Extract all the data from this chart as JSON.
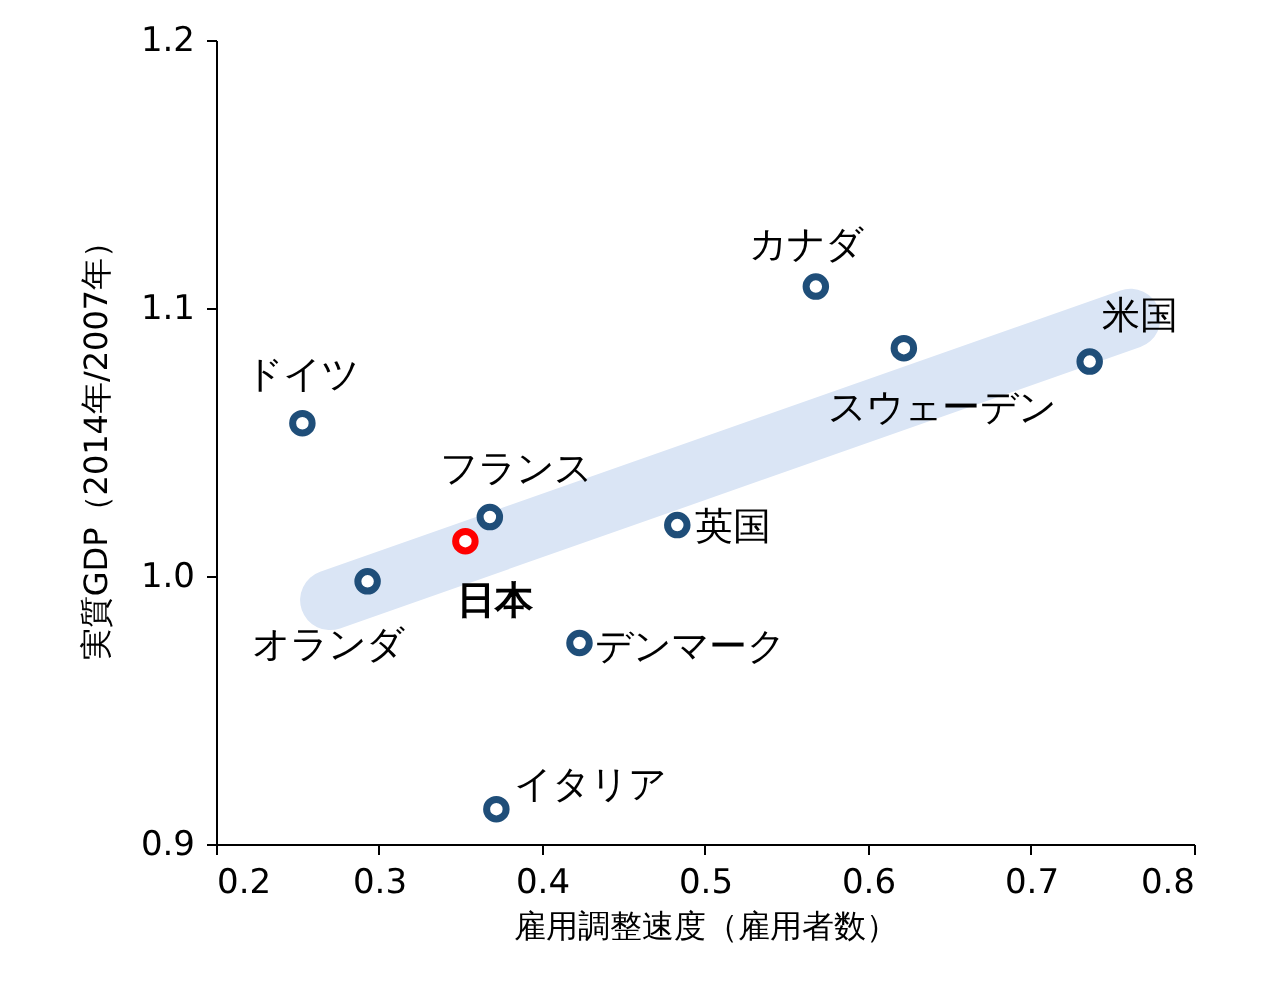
{
  "chart_data": {
    "type": "scatter",
    "xlabel": "雇用調整速度（雇用者数）",
    "ylabel": "実質GDP（2014年/2007年）",
    "xlim": [
      0.2,
      0.8
    ],
    "xticks": [
      0.2,
      0.3,
      0.4,
      0.5,
      0.6,
      0.7,
      0.8
    ],
    "ylim": [
      0.9,
      1.2
    ],
    "yticks": [
      0.9,
      {
        "value": 1.0,
        "label": "1.0"
      },
      1.1,
      1.2
    ],
    "series": [
      {
        "type": "line",
        "color": "#dae5f5",
        "x": [
          0.27,
          0.761
        ],
        "values": [
          0.991,
          1.096
        ]
      },
      {
        "marker": "circle",
        "colors": [
          "#1f4e79",
          "#1f4e79",
          "#ff0000",
          "#1f4e79",
          "#1f4e79",
          "#1f4e79",
          "#1f4e79",
          "#1f4e79",
          "#1f4e79",
          "#1f4e79"
        ],
        "x": [
          0.253,
          0.293,
          0.353,
          0.368,
          0.423,
          0.372,
          0.483,
          0.568,
          0.622,
          0.736
        ],
        "values": [
          1.057,
          0.998,
          1.013,
          1.022,
          0.975,
          0.913,
          1.019,
          1.108,
          1.085,
          1.08
        ]
      }
    ],
    "annotations": [
      {
        "text": "ドイツ",
        "x": 0.253,
        "y": 1.057
      },
      {
        "text": "オランダ",
        "x": 0.293,
        "y": 0.998
      },
      {
        "text": "日本",
        "x": 0.353,
        "y": 1.013
      },
      {
        "text": "フランス",
        "x": 0.368,
        "y": 1.022
      },
      {
        "text": "デンマーク",
        "x": 0.423,
        "y": 0.975
      },
      {
        "text": "イタリア",
        "x": 0.372,
        "y": 0.913
      },
      {
        "text": "英国",
        "x": 0.483,
        "y": 1.019
      },
      {
        "text": "カナダ",
        "x": 0.568,
        "y": 1.108
      },
      {
        "text": "スウェーデン",
        "x": 0.622,
        "y": 1.085
      },
      {
        "text": "米国",
        "x": 0.736,
        "y": 1.08
      }
    ]
  }
}
